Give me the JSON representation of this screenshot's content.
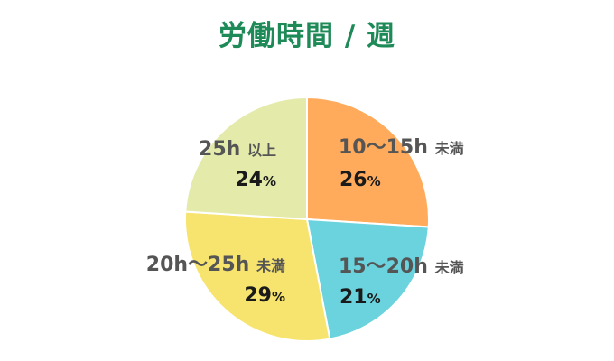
{
  "chart_data": {
    "type": "pie",
    "title": "労働時間 / 週",
    "slices": [
      {
        "label": "10～15h",
        "suffix": "未満",
        "value": 26,
        "color": "#ffab5b"
      },
      {
        "label": "15～20h",
        "suffix": "未満",
        "value": 21,
        "color": "#6ad3dd"
      },
      {
        "label": "20h～25h",
        "suffix": "未満",
        "value": 29,
        "color": "#f7e46f"
      },
      {
        "label": "25h",
        "suffix": "以上",
        "value": 24,
        "color": "#e4eaa9"
      }
    ],
    "value_suffix": "%"
  }
}
